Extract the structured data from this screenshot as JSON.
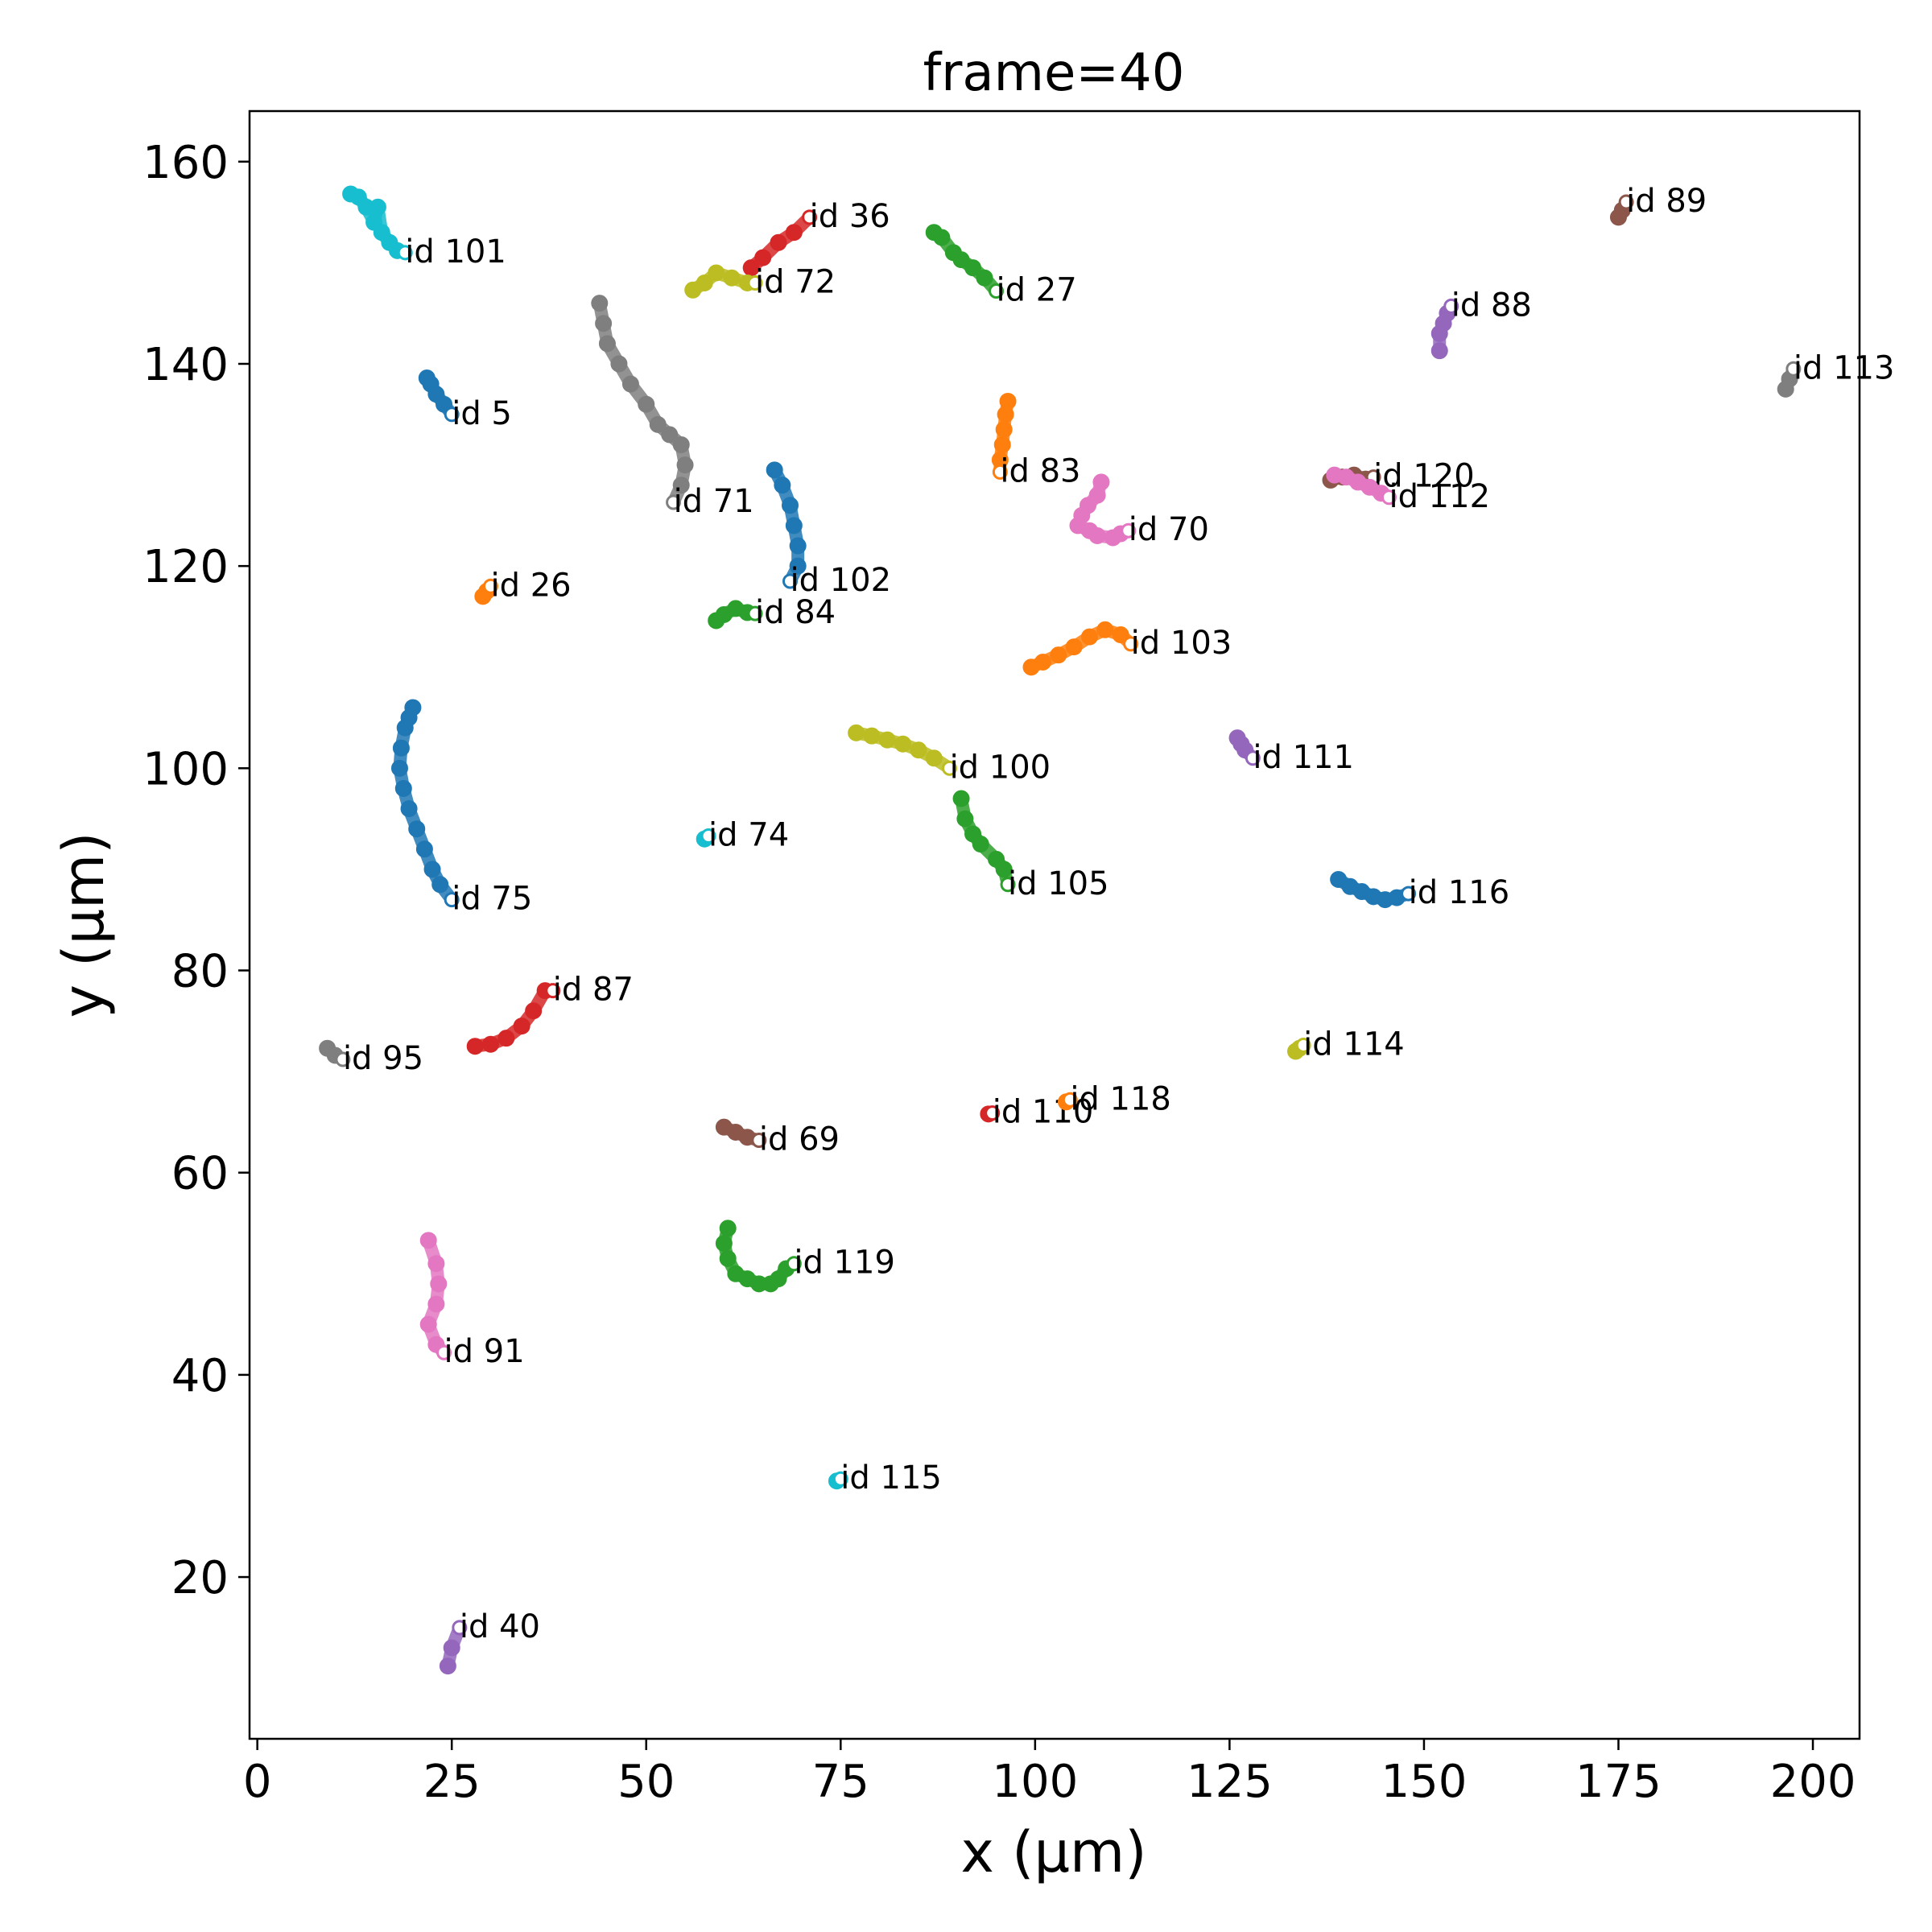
{
  "chart_data": {
    "type": "scatter",
    "title": "frame=40",
    "xlabel": "x (μm)",
    "ylabel": "y (μm)",
    "xlim": [
      -1,
      206
    ],
    "ylim": [
      4,
      165
    ],
    "xticks": [
      0,
      25,
      50,
      75,
      100,
      125,
      150,
      175,
      200
    ],
    "yticks": [
      20,
      40,
      60,
      80,
      100,
      120,
      140,
      160
    ],
    "grid": false,
    "legend": "none",
    "series": [
      {
        "name": "id 101",
        "color": "#17becf",
        "points": [
          [
            12,
            156.8
          ],
          [
            13,
            156.5
          ],
          [
            14,
            155.5
          ],
          [
            15,
            154
          ],
          [
            15.5,
            155.5
          ],
          [
            16,
            153
          ],
          [
            17,
            152
          ],
          [
            18,
            151.2
          ],
          [
            19,
            151
          ]
        ]
      },
      {
        "name": "id 5",
        "color": "#1f77b4",
        "points": [
          [
            21.8,
            138.6
          ],
          [
            22.3,
            138
          ],
          [
            23,
            137
          ],
          [
            24,
            136
          ],
          [
            25,
            135
          ]
        ]
      },
      {
        "name": "id 26",
        "color": "#ff7f0e",
        "points": [
          [
            29,
            117
          ],
          [
            29.5,
            117.5
          ],
          [
            30,
            118
          ]
        ]
      },
      {
        "name": "id 75",
        "color": "#1f77b4",
        "points": [
          [
            20,
            106
          ],
          [
            19.5,
            105
          ],
          [
            19,
            104
          ],
          [
            18.5,
            102
          ],
          [
            18.3,
            100
          ],
          [
            18.8,
            98
          ],
          [
            19.5,
            96
          ],
          [
            20.5,
            94
          ],
          [
            21.5,
            92
          ],
          [
            22.5,
            90
          ],
          [
            23.5,
            88.5
          ],
          [
            25,
            87
          ]
        ]
      },
      {
        "name": "id 87",
        "color": "#d62728",
        "points": [
          [
            28,
            72.5
          ],
          [
            30,
            72.7
          ],
          [
            32,
            73.3
          ],
          [
            34,
            74.5
          ],
          [
            35.5,
            76
          ],
          [
            37,
            78
          ],
          [
            38,
            78
          ]
        ]
      },
      {
        "name": "id 95",
        "color": "#7f7f7f",
        "points": [
          [
            9,
            72.3
          ],
          [
            10,
            71.6
          ],
          [
            11,
            71.2
          ]
        ]
      },
      {
        "name": "id 91",
        "color": "#e377c2",
        "points": [
          [
            22,
            53.3
          ],
          [
            23,
            51
          ],
          [
            23.3,
            49
          ],
          [
            23,
            47
          ],
          [
            22,
            45
          ],
          [
            23,
            43
          ],
          [
            24,
            42.2
          ]
        ]
      },
      {
        "name": "id 40",
        "color": "#9467bd",
        "points": [
          [
            24.5,
            11.2
          ],
          [
            25,
            13
          ],
          [
            26,
            15
          ]
        ]
      },
      {
        "name": "id 71",
        "color": "#7f7f7f",
        "points": [
          [
            44,
            146
          ],
          [
            44.5,
            144
          ],
          [
            45,
            142
          ],
          [
            46.5,
            140
          ],
          [
            48,
            138
          ],
          [
            50,
            136
          ],
          [
            51.5,
            134
          ],
          [
            53,
            133
          ],
          [
            54.5,
            132
          ],
          [
            55,
            130
          ],
          [
            54.5,
            128
          ],
          [
            53.5,
            126.3
          ]
        ]
      },
      {
        "name": "id 36",
        "color": "#d62728",
        "points": [
          [
            63.5,
            149.5
          ],
          [
            65,
            150.5
          ],
          [
            67,
            152
          ],
          [
            69,
            153
          ],
          [
            71,
            154.5
          ]
        ]
      },
      {
        "name": "id 72",
        "color": "#bcbd22",
        "points": [
          [
            56,
            147.3
          ],
          [
            57.5,
            148
          ],
          [
            59,
            149
          ],
          [
            61,
            148.5
          ],
          [
            63,
            148
          ],
          [
            64,
            148
          ]
        ]
      },
      {
        "name": "id 102",
        "color": "#1f77b4",
        "points": [
          [
            66.5,
            129.5
          ],
          [
            67.5,
            128
          ],
          [
            68.5,
            126
          ],
          [
            69,
            124
          ],
          [
            69.5,
            122
          ],
          [
            69.5,
            120
          ],
          [
            68.5,
            118.5
          ]
        ]
      },
      {
        "name": "id 84",
        "color": "#2ca02c",
        "points": [
          [
            59,
            114.6
          ],
          [
            60,
            115.2
          ],
          [
            61.5,
            115.8
          ],
          [
            63,
            115.4
          ],
          [
            64,
            115.3
          ]
        ]
      },
      {
        "name": "id 74",
        "color": "#17becf",
        "points": [
          [
            57.5,
            93
          ],
          [
            58,
            93.3
          ]
        ]
      },
      {
        "name": "id 69",
        "color": "#8c564b",
        "points": [
          [
            60,
            64.5
          ],
          [
            61.5,
            64
          ],
          [
            63,
            63.5
          ],
          [
            64.5,
            63.2
          ]
        ]
      },
      {
        "name": "id 119",
        "color": "#2ca02c",
        "points": [
          [
            60.5,
            54.5
          ],
          [
            60,
            53
          ],
          [
            60.5,
            51.5
          ],
          [
            61.5,
            50
          ],
          [
            63,
            49.5
          ],
          [
            64.5,
            49
          ],
          [
            66,
            49
          ],
          [
            67,
            49.5
          ],
          [
            68,
            50.5
          ],
          [
            69,
            51
          ]
        ]
      },
      {
        "name": "id 115",
        "color": "#17becf",
        "points": [
          [
            74.5,
            29.5
          ],
          [
            75,
            29.7
          ]
        ]
      },
      {
        "name": "id 27",
        "color": "#2ca02c",
        "points": [
          [
            87,
            153
          ],
          [
            88,
            152.5
          ],
          [
            89.5,
            151
          ],
          [
            90.5,
            150.3
          ],
          [
            92,
            149.5
          ],
          [
            93.5,
            148.5
          ],
          [
            95,
            147.2
          ]
        ]
      },
      {
        "name": "id 83",
        "color": "#ff7f0e",
        "points": [
          [
            96.5,
            136.3
          ],
          [
            96.2,
            135
          ],
          [
            96,
            133.5
          ],
          [
            95.8,
            132
          ],
          [
            95.5,
            130.5
          ],
          [
            95.5,
            129.3
          ]
        ]
      },
      {
        "name": "id 70",
        "color": "#e377c2",
        "points": [
          [
            108.5,
            128.3
          ],
          [
            108,
            127
          ],
          [
            106.8,
            126
          ],
          [
            106,
            125
          ],
          [
            105.5,
            124
          ],
          [
            107,
            123.5
          ],
          [
            108,
            123
          ],
          [
            110,
            122.8
          ],
          [
            111,
            123.2
          ],
          [
            112,
            123.5
          ]
        ]
      },
      {
        "name": "id 103",
        "color": "#ff7f0e",
        "points": [
          [
            99.5,
            110
          ],
          [
            101,
            110.5
          ],
          [
            103,
            111.2
          ],
          [
            105,
            112
          ],
          [
            107,
            113
          ],
          [
            109,
            113.7
          ],
          [
            111,
            113.2
          ],
          [
            112.3,
            112.3
          ]
        ]
      },
      {
        "name": "id 100",
        "color": "#bcbd22",
        "points": [
          [
            77,
            103.5
          ],
          [
            79,
            103.2
          ],
          [
            81,
            102.8
          ],
          [
            83,
            102.4
          ],
          [
            85,
            101.8
          ],
          [
            87,
            101
          ],
          [
            89,
            100
          ]
        ]
      },
      {
        "name": "id 105",
        "color": "#2ca02c",
        "points": [
          [
            90.5,
            97
          ],
          [
            91,
            95
          ],
          [
            92,
            93.5
          ],
          [
            93,
            92.5
          ],
          [
            95,
            91
          ],
          [
            96,
            90
          ],
          [
            96.5,
            88.5
          ]
        ]
      },
      {
        "name": "id 110",
        "color": "#d62728",
        "points": [
          [
            94,
            65.8
          ],
          [
            94.5,
            65.9
          ]
        ]
      },
      {
        "name": "id 118",
        "color": "#ff7f0e",
        "points": [
          [
            104,
            67
          ],
          [
            104.5,
            67.2
          ]
        ]
      },
      {
        "name": "id 89",
        "color": "#8c564b",
        "points": [
          [
            175,
            154.5
          ],
          [
            175.5,
            155.2
          ],
          [
            176,
            156
          ]
        ]
      },
      {
        "name": "id 88",
        "color": "#9467bd",
        "points": [
          [
            152,
            141.3
          ],
          [
            152,
            143
          ],
          [
            152.5,
            144
          ],
          [
            153,
            145
          ],
          [
            153.5,
            145.7
          ]
        ]
      },
      {
        "name": "id 113",
        "color": "#7f7f7f",
        "points": [
          [
            196.5,
            137.5
          ],
          [
            197,
            138.5
          ],
          [
            197.5,
            139.5
          ]
        ]
      },
      {
        "name": "id 120",
        "color": "#8c564b",
        "points": [
          [
            138,
            128.5
          ],
          [
            139.5,
            128.8
          ],
          [
            141,
            129
          ],
          [
            142.5,
            128.6
          ],
          [
            143.5,
            128.8
          ]
        ]
      },
      {
        "name": "id 112",
        "color": "#e377c2",
        "points": [
          [
            138.5,
            129
          ],
          [
            140,
            128.8
          ],
          [
            141.5,
            128.3
          ],
          [
            143,
            127.8
          ],
          [
            144.5,
            127.2
          ],
          [
            145.5,
            126.8
          ]
        ]
      },
      {
        "name": "id 111",
        "color": "#9467bd",
        "points": [
          [
            126,
            103
          ],
          [
            126.5,
            102.4
          ],
          [
            127,
            101.8
          ],
          [
            128,
            101
          ]
        ]
      },
      {
        "name": "id 116",
        "color": "#1f77b4",
        "points": [
          [
            139,
            89
          ],
          [
            140.5,
            88.3
          ],
          [
            142,
            87.8
          ],
          [
            143.5,
            87.3
          ],
          [
            145,
            87
          ],
          [
            146.5,
            87.2
          ],
          [
            148,
            87.6
          ]
        ]
      },
      {
        "name": "id 114",
        "color": "#bcbd22",
        "points": [
          [
            133.5,
            72
          ],
          [
            134,
            72.3
          ],
          [
            134.5,
            72.6
          ]
        ]
      }
    ]
  }
}
